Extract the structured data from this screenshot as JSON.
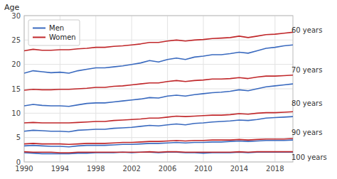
{
  "chart_data": {
    "type": "line",
    "y_label": "Age",
    "x": [
      1990,
      1991,
      1992,
      1993,
      1994,
      1995,
      1996,
      1997,
      1998,
      1999,
      2000,
      2001,
      2002,
      2003,
      2004,
      2005,
      2006,
      2007,
      2008,
      2009,
      2010,
      2011,
      2012,
      2013,
      2014,
      2015,
      2016,
      2017,
      2018,
      2019,
      2020
    ],
    "xlim": [
      1990,
      2020
    ],
    "ylim": [
      0,
      30
    ],
    "xticks": [
      1990,
      1994,
      1998,
      2002,
      2006,
      2010,
      2014,
      2018
    ],
    "yticks": [
      0,
      5,
      10,
      15,
      20,
      25,
      30
    ],
    "grid": true,
    "legend": "top-left",
    "series": [
      {
        "name": "Men",
        "color": "#3a6abf",
        "values": [
          18.2,
          18.7,
          18.5,
          18.3,
          18.4,
          18.2,
          18.7,
          19.0,
          19.3,
          19.3,
          19.5,
          19.7,
          20.0,
          20.3,
          20.8,
          20.5,
          21.0,
          21.3,
          21.0,
          21.5,
          21.7,
          22.0,
          22.0,
          22.2,
          22.5,
          22.3,
          22.8,
          23.3,
          23.5,
          23.8,
          24.0
        ]
      },
      {
        "name": "Women",
        "color": "#c0272a",
        "values": [
          22.8,
          23.1,
          22.9,
          22.9,
          23.0,
          23.0,
          23.2,
          23.3,
          23.5,
          23.5,
          23.7,
          23.8,
          24.0,
          24.2,
          24.5,
          24.5,
          24.8,
          25.0,
          24.8,
          25.0,
          25.1,
          25.3,
          25.4,
          25.5,
          25.8,
          25.5,
          25.8,
          26.1,
          26.2,
          26.4,
          26.6
        ]
      },
      {
        "color": "#3a6abf",
        "values": [
          11.5,
          11.8,
          11.6,
          11.5,
          11.5,
          11.4,
          11.7,
          12.0,
          12.1,
          12.1,
          12.3,
          12.5,
          12.7,
          12.9,
          13.2,
          13.1,
          13.5,
          13.7,
          13.5,
          13.8,
          14.0,
          14.2,
          14.3,
          14.5,
          14.8,
          14.6,
          15.0,
          15.4,
          15.6,
          15.8,
          16.0
        ]
      },
      {
        "color": "#c0272a",
        "values": [
          14.7,
          14.9,
          14.8,
          14.8,
          14.9,
          14.9,
          15.0,
          15.1,
          15.3,
          15.3,
          15.5,
          15.6,
          15.8,
          16.0,
          16.2,
          16.2,
          16.5,
          16.7,
          16.5,
          16.7,
          16.8,
          17.0,
          17.0,
          17.1,
          17.3,
          17.1,
          17.4,
          17.6,
          17.6,
          17.7,
          17.8
        ]
      },
      {
        "color": "#3a6abf",
        "values": [
          6.3,
          6.5,
          6.4,
          6.3,
          6.3,
          6.2,
          6.5,
          6.6,
          6.7,
          6.7,
          6.9,
          7.0,
          7.1,
          7.3,
          7.5,
          7.4,
          7.6,
          7.8,
          7.6,
          7.9,
          8.0,
          8.2,
          8.3,
          8.4,
          8.6,
          8.5,
          8.7,
          9.0,
          9.1,
          9.2,
          9.3
        ]
      },
      {
        "color": "#c0272a",
        "values": [
          8.0,
          8.1,
          8.0,
          8.0,
          8.0,
          8.0,
          8.1,
          8.2,
          8.3,
          8.3,
          8.5,
          8.6,
          8.7,
          8.8,
          9.0,
          9.0,
          9.2,
          9.4,
          9.3,
          9.4,
          9.5,
          9.6,
          9.6,
          9.7,
          9.9,
          9.8,
          10.0,
          10.1,
          10.1,
          10.2,
          10.3
        ]
      },
      {
        "color": "#3a6abf",
        "values": [
          3.3,
          3.4,
          3.3,
          3.2,
          3.2,
          3.1,
          3.3,
          3.4,
          3.4,
          3.4,
          3.5,
          3.6,
          3.6,
          3.7,
          3.8,
          3.8,
          3.9,
          4.0,
          3.9,
          4.0,
          4.0,
          4.1,
          4.1,
          4.2,
          4.3,
          4.2,
          4.3,
          4.4,
          4.4,
          4.4,
          4.5
        ]
      },
      {
        "color": "#c0272a",
        "values": [
          3.7,
          3.8,
          3.7,
          3.7,
          3.7,
          3.6,
          3.7,
          3.8,
          3.8,
          3.8,
          3.9,
          4.0,
          4.0,
          4.1,
          4.2,
          4.2,
          4.3,
          4.4,
          4.3,
          4.4,
          4.4,
          4.5,
          4.5,
          4.5,
          4.6,
          4.5,
          4.6,
          4.7,
          4.7,
          4.7,
          4.8
        ]
      },
      {
        "color": "#3a6abf",
        "values": [
          1.9,
          1.8,
          1.7,
          1.7,
          1.7,
          1.7,
          1.8,
          1.8,
          1.9,
          1.9,
          1.9,
          2.0,
          1.9,
          2.0,
          2.0,
          1.9,
          2.0,
          2.0,
          1.9,
          1.9,
          1.8,
          1.9,
          1.9,
          1.9,
          2.0,
          1.9,
          2.0,
          2.0,
          2.0,
          2.0,
          2.0
        ]
      },
      {
        "color": "#c0272a",
        "values": [
          2.1,
          2.0,
          2.0,
          2.0,
          1.9,
          1.9,
          2.0,
          2.0,
          2.0,
          2.0,
          2.0,
          2.0,
          2.0,
          2.0,
          2.1,
          2.0,
          2.1,
          2.1,
          2.0,
          2.0,
          2.0,
          2.0,
          2.0,
          2.0,
          2.1,
          2.0,
          2.1,
          2.1,
          2.1,
          2.1,
          2.1
        ]
      }
    ],
    "annotations": [
      {
        "text": "60 years",
        "x": 2019.6,
        "y": 27.0
      },
      {
        "text": "70 years",
        "x": 2019.6,
        "y": 18.8
      },
      {
        "text": "80 years",
        "x": 2019.6,
        "y": 12.0
      },
      {
        "text": "90 years",
        "x": 2019.6,
        "y": 6.0
      },
      {
        "text": "100 years",
        "x": 2019.6,
        "y": 1.0
      }
    ]
  }
}
